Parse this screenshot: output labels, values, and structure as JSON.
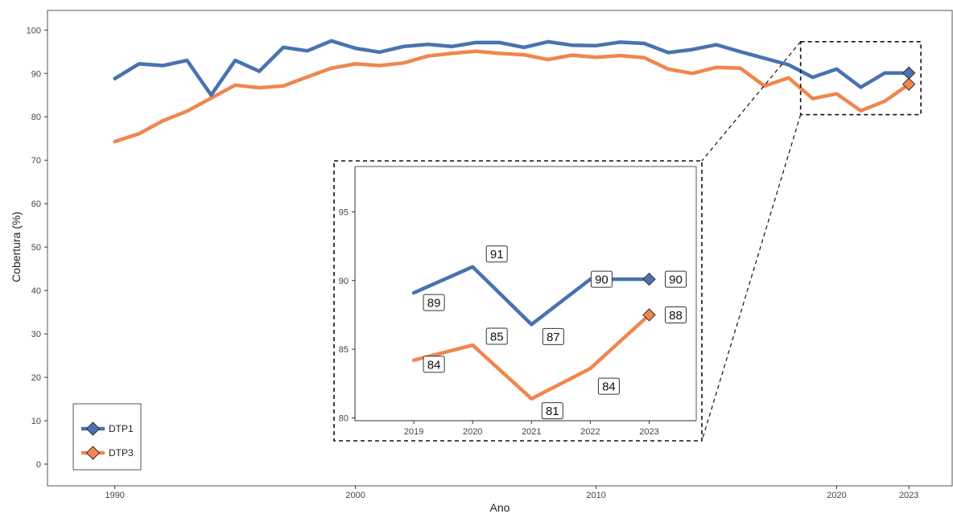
{
  "chart_data": [
    {
      "type": "line",
      "xlabel": "Ano",
      "ylabel": "Cobertura (%)",
      "xlim": [
        1987.2,
        2024.8
      ],
      "ylim": [
        -5,
        104.5
      ],
      "x_ticks": [
        1990,
        2000,
        2010,
        2020,
        2023
      ],
      "y_ticks": [
        0,
        10,
        20,
        30,
        40,
        50,
        60,
        70,
        80,
        90,
        100
      ],
      "grid": false,
      "legend_position": "bottom-left",
      "x": [
        1990,
        1991,
        1992,
        1993,
        1994,
        1995,
        1996,
        1997,
        1998,
        1999,
        2000,
        2001,
        2002,
        2003,
        2004,
        2005,
        2006,
        2007,
        2008,
        2009,
        2010,
        2011,
        2012,
        2013,
        2014,
        2015,
        2016,
        2017,
        2018,
        2019,
        2020,
        2021,
        2022,
        2023
      ],
      "series": [
        {
          "name": "DTP1",
          "color": "#4a72b0",
          "values": [
            88.8,
            92.2,
            91.8,
            93.0,
            85.0,
            93.0,
            90.5,
            96.0,
            95.2,
            97.5,
            95.8,
            94.9,
            96.2,
            96.7,
            96.2,
            97.1,
            97.1,
            96.0,
            97.3,
            96.5,
            96.4,
            97.2,
            96.9,
            94.8,
            95.5,
            96.6,
            95.0,
            93.5,
            92.0,
            89.1,
            91.0,
            86.8,
            90.1,
            90.1
          ]
        },
        {
          "name": "DTP3",
          "color": "#f0864f",
          "values": [
            74.3,
            76.1,
            79.1,
            81.3,
            84.3,
            87.3,
            86.7,
            87.1,
            89.2,
            91.2,
            92.2,
            91.8,
            92.4,
            94.0,
            94.6,
            95.1,
            94.6,
            94.3,
            93.2,
            94.2,
            93.7,
            94.1,
            93.6,
            91.0,
            90.0,
            91.4,
            91.2,
            87.1,
            89.0,
            84.2,
            85.3,
            81.4,
            83.6,
            87.5
          ]
        }
      ],
      "end_marker": "diamond"
    },
    {
      "type": "line",
      "xlim": [
        2018.0,
        2023.8
      ],
      "ylim": [
        79.8,
        98.3
      ],
      "x_ticks": [
        2019,
        2020,
        2021,
        2022,
        2023
      ],
      "y_ticks": [
        80,
        85,
        90,
        95
      ],
      "grid": false,
      "x": [
        2019,
        2020,
        2021,
        2022,
        2023
      ],
      "series": [
        {
          "name": "DTP1",
          "color": "#4a72b0",
          "values": [
            89.1,
            91.0,
            86.8,
            90.1,
            90.1
          ],
          "labels": [
            "89",
            "91",
            "87",
            "90",
            "90"
          ]
        },
        {
          "name": "DTP3",
          "color": "#f0864f",
          "values": [
            84.2,
            85.3,
            81.4,
            83.6,
            87.5
          ],
          "labels": [
            "84",
            "85",
            "81",
            "84",
            "88"
          ]
        }
      ]
    }
  ]
}
